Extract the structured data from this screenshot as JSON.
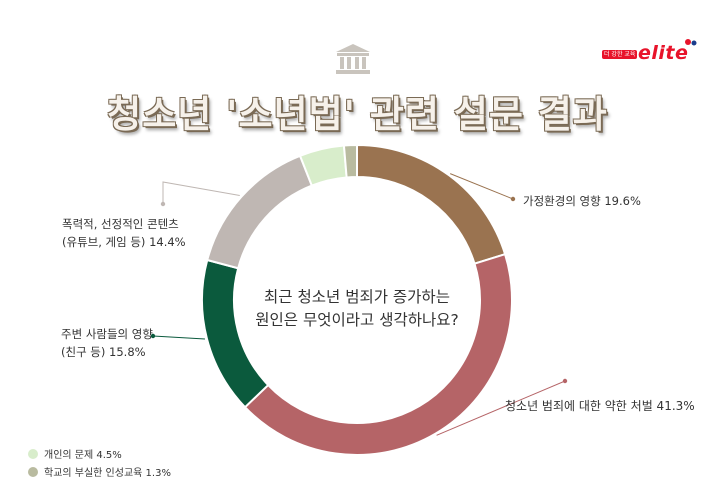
{
  "brand": {
    "tag": "더 강한 교육",
    "name": "elite"
  },
  "title": "청소년 '소년법' 관련 설문 결과",
  "question_lines": [
    "최근 청소년 범죄가 증가하는",
    "원인은 무엇이라고 생각하나요?"
  ],
  "colors": {
    "family": "#9a7350",
    "punishment": "#b56467",
    "people": "#0b5a3d",
    "content": "#bfb7b3",
    "personal": "#d8edcb",
    "school": "#b9bba0"
  },
  "chart_data": {
    "type": "pie",
    "title": "청소년 '소년법' 관련 설문 결과",
    "categories": [
      "가정환경의 영향",
      "청소년 범죄에 대한 약한 처벌",
      "주변 사람들의 영향 (친구 등)",
      "폭력적, 선정적인 콘텐츠 (유튜브, 게임 등)",
      "개인의 문제",
      "학교의 부실한 인성교육"
    ],
    "values": [
      19.6,
      41.3,
      15.8,
      14.4,
      4.5,
      1.3
    ],
    "unit": "%",
    "legend_placement": "bottom-left"
  },
  "labels": {
    "family": "가정환경의 영향 19.6%",
    "punishment": "청소년 범죄에 대한 약한 처벌 41.3%",
    "people_1": "주변 사람들의 영향",
    "people_2": "(친구 등) 15.8%",
    "content_1": "폭력적, 선정적인 콘텐츠",
    "content_2": "(유튜브, 게임 등) 14.4%"
  },
  "legend": {
    "personal": "개인의 문제 4.5%",
    "school": "학교의 부실한 인성교육 1.3%"
  }
}
